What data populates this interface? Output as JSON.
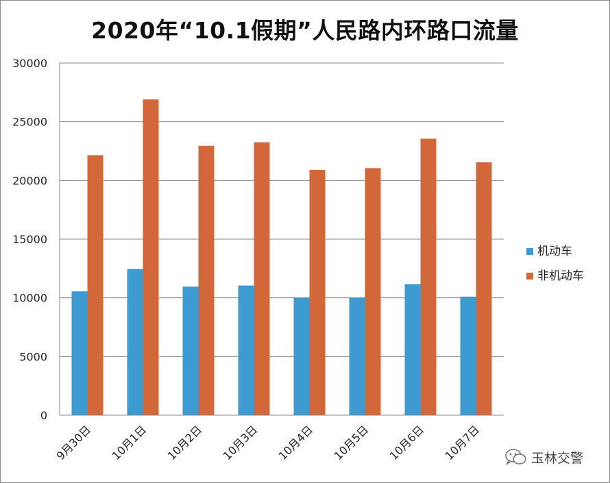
{
  "chart_data": {
    "type": "bar",
    "title": "2020年“10.1假期”人民路内环路口流量",
    "categories": [
      "9月30日",
      "10月1日",
      "10月2日",
      "10月3日",
      "10月4日",
      "10月5日",
      "10月6日",
      "10月7日"
    ],
    "series": [
      {
        "name": "机动车",
        "color": "#3e9bd1",
        "values": [
          10550,
          12450,
          10950,
          11050,
          10000,
          10000,
          11150,
          10100
        ]
      },
      {
        "name": "非机动车",
        "color": "#d2683a",
        "values": [
          22150,
          26900,
          22950,
          23250,
          20900,
          21050,
          23550,
          21550
        ]
      }
    ],
    "ylim": [
      0,
      30000
    ],
    "yticks": [
      0,
      5000,
      10000,
      15000,
      20000,
      25000,
      30000
    ],
    "grid": true,
    "legend": "right"
  },
  "watermark": {
    "text": "玉林交警",
    "icon": "wechat-icon"
  }
}
